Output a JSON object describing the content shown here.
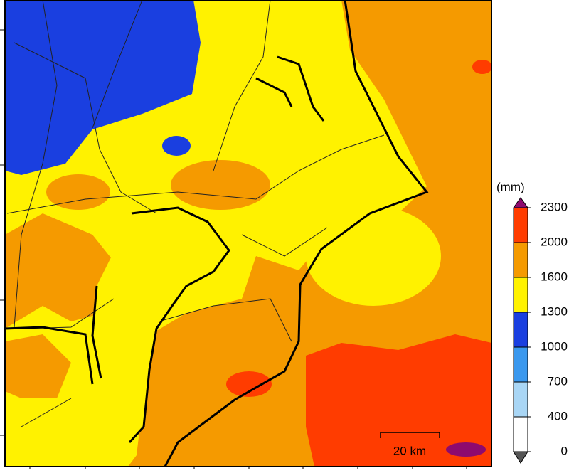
{
  "legend": {
    "unit": "(mm)",
    "ticks": [
      2300,
      2000,
      1600,
      1300,
      1000,
      700,
      400,
      0
    ],
    "colors": [
      "#ff3c00",
      "#f59a00",
      "#fff200",
      "#1a3fe0",
      "#3a98ee",
      "#a9d6f5",
      "#ffffff"
    ],
    "over_color": "#8e0a6e",
    "under_color": "#555555"
  },
  "scale_bar": {
    "label": "20 km"
  }
}
